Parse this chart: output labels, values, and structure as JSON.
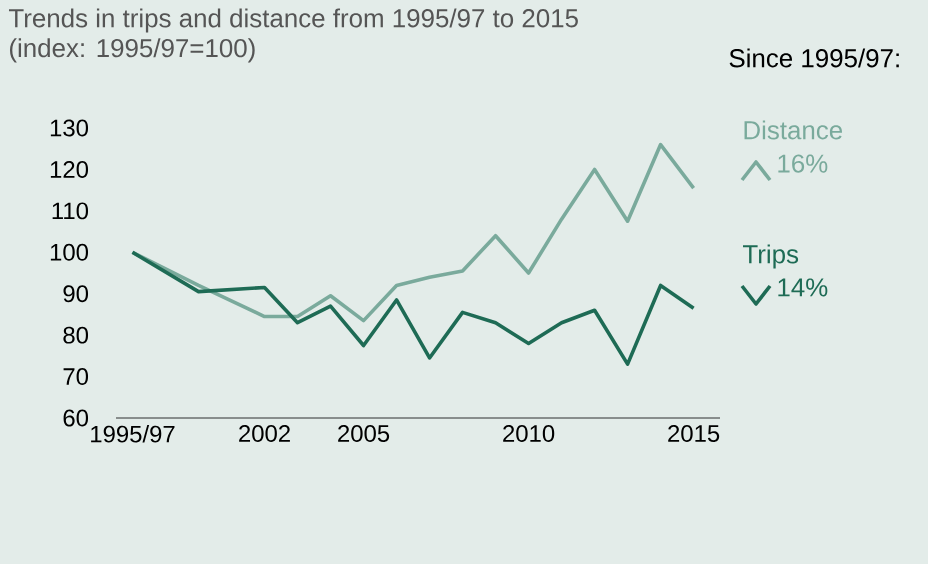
{
  "chart_data": {
    "type": "line",
    "title": "Trends in trips and distance from 1995/97 to 2015",
    "subtitle": "(index: 1995/97=100)",
    "x": [
      1998,
      2000,
      2002,
      2003,
      2004,
      2005,
      2006,
      2007,
      2008,
      2009,
      2010,
      2011,
      2012,
      2013,
      2014,
      2015
    ],
    "series": [
      {
        "name": "Distance",
        "color": "#7aaa9c",
        "values": [
          100,
          92,
          84.5,
          84.5,
          89.5,
          83.5,
          92,
          94,
          95.5,
          104,
          95,
          108,
          120,
          107.5,
          126,
          115.5
        ]
      },
      {
        "name": "Trips",
        "color": "#1e6b55",
        "values": [
          100,
          90.5,
          91.5,
          83,
          87,
          77.5,
          88.5,
          74.5,
          85.5,
          83,
          78,
          83,
          86,
          73,
          92,
          86.5
        ]
      }
    ],
    "xlim": [
      1997.5,
      2015.8
    ],
    "xticks": [
      {
        "value": 1998,
        "label": "1995/97"
      },
      2002,
      2005,
      2010,
      2015
    ],
    "ylim": [
      60,
      130
    ],
    "yticks": [
      60,
      70,
      80,
      90,
      100,
      110,
      120,
      130
    ],
    "annotations": [
      "Since 1995/97:",
      "16%",
      "14%"
    ],
    "grid": false,
    "legend": "right",
    "marker": "none",
    "line_style": "solid"
  }
}
